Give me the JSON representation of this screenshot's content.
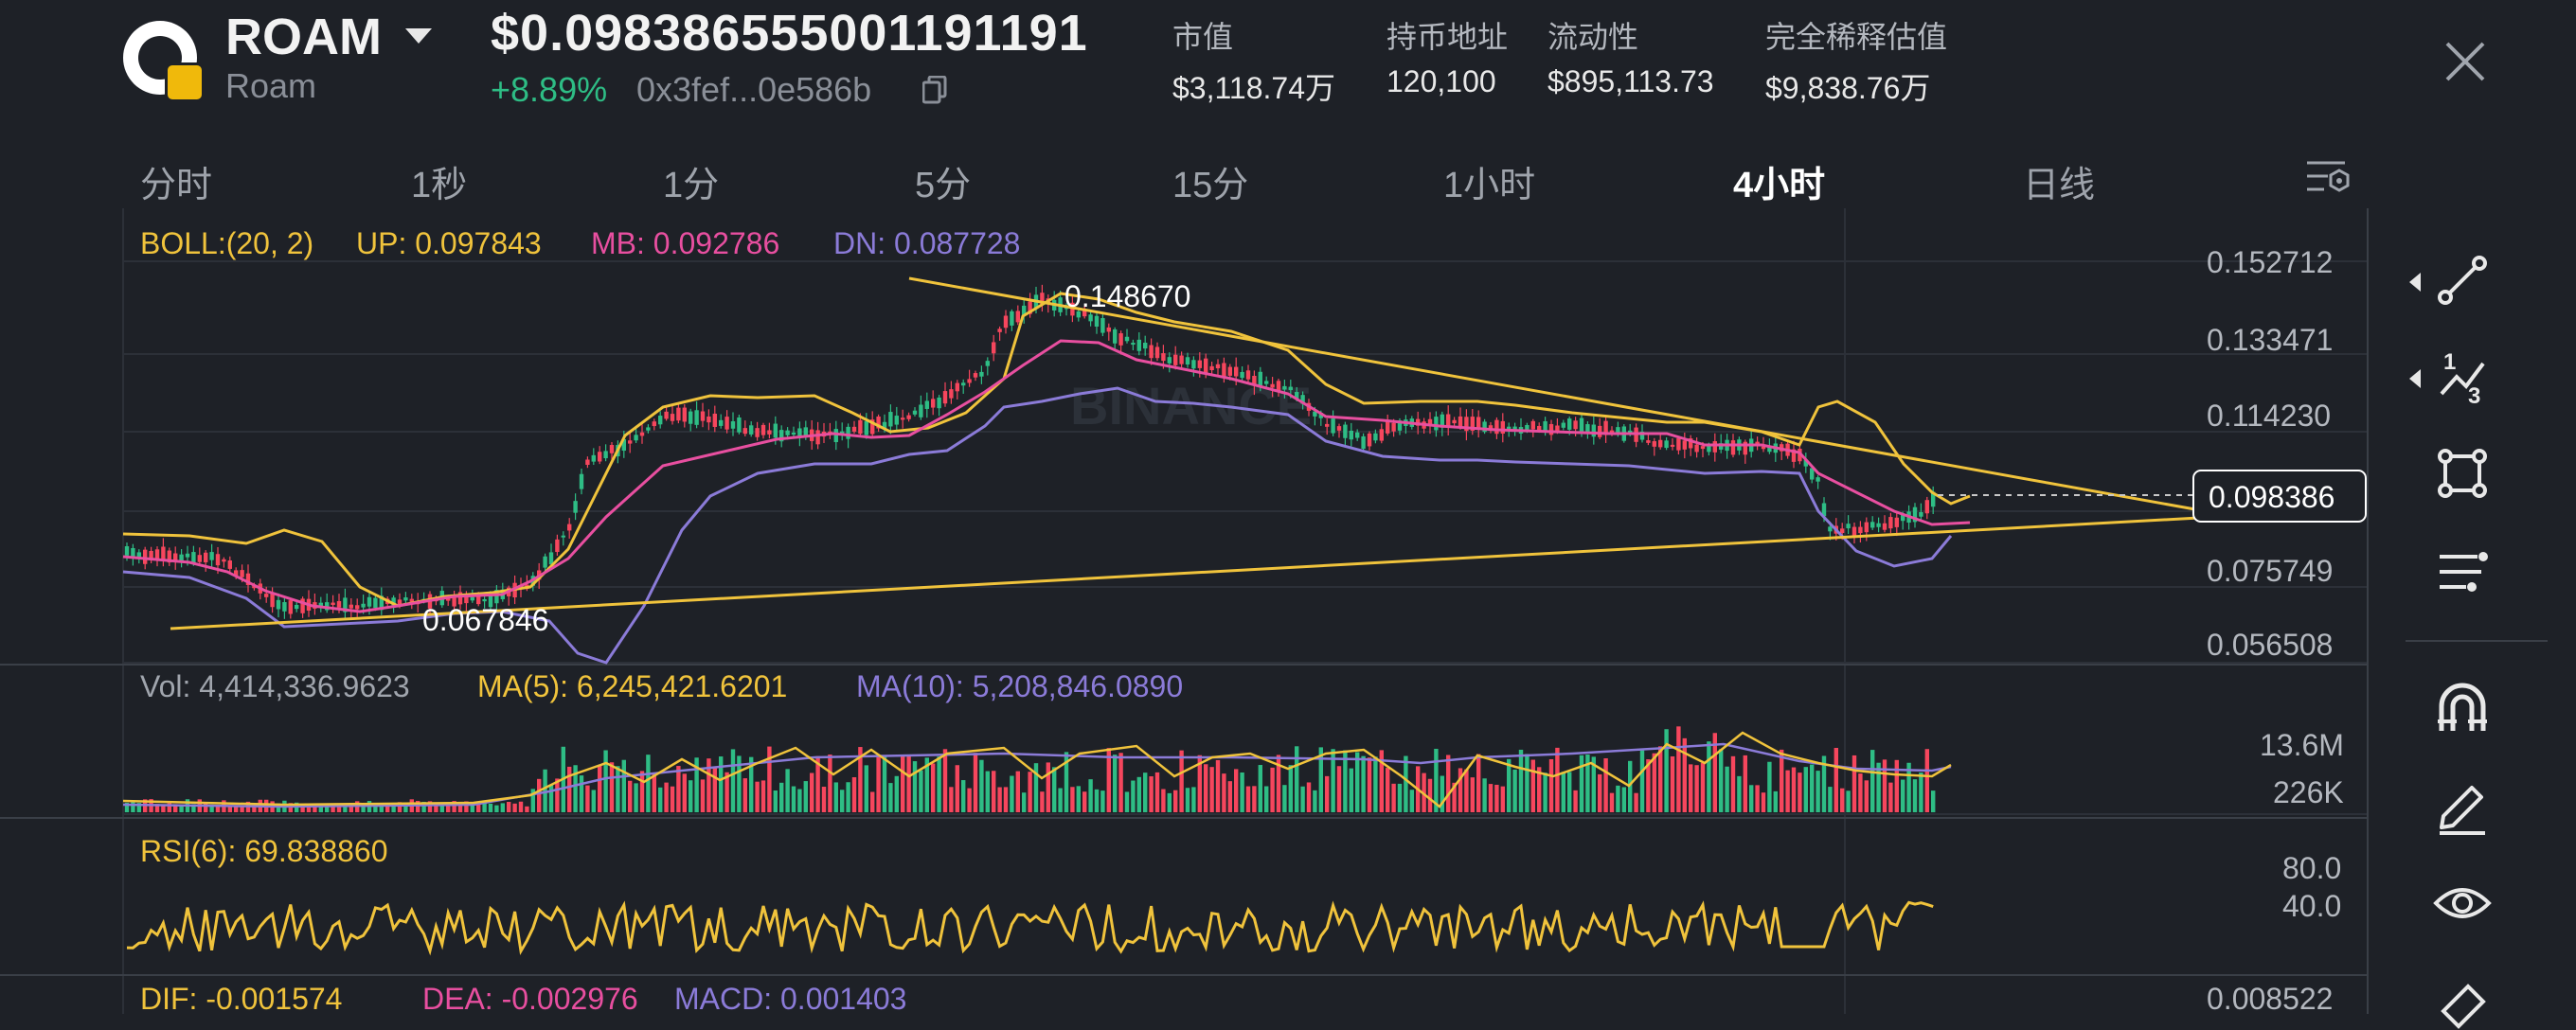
{
  "header": {
    "ticker": "ROAM",
    "name": "Roam",
    "price": "$0.098386555001191191",
    "change": "+8.89%",
    "address": "0x3fef...0e586b",
    "stats": [
      {
        "label": "市值",
        "value": "$3,118.74万"
      },
      {
        "label": "持币地址",
        "value": "120,100"
      },
      {
        "label": "流动性",
        "value": "$895,113.73"
      },
      {
        "label": "完全稀释估值",
        "value": "$9,838.76万"
      }
    ]
  },
  "tabs": [
    "分时",
    "1秒",
    "1分",
    "5分",
    "15分",
    "1小时",
    "4小时",
    "日线"
  ],
  "active_tab": "4小时",
  "indicators": {
    "boll": {
      "name": "BOLL:(20, 2)",
      "up": "UP: 0.097843",
      "mb": "MB: 0.092786",
      "dn": "DN: 0.087728"
    },
    "vol": {
      "vol": "Vol: 4,414,336.9623",
      "ma5": "MA(5): 6,245,421.6201",
      "ma10": "MA(10): 5,208,846.0890"
    },
    "rsi": {
      "rsi6": "RSI(6): 69.838860"
    },
    "macd": {
      "dif": "DIF: -0.001574",
      "dea": "DEA: -0.002976",
      "macd": "MACD: 0.001403"
    }
  },
  "price_axis": [
    "0.152712",
    "0.133471",
    "0.114230",
    "0.075749",
    "0.056508"
  ],
  "current_price_label": "0.098386",
  "annotations": {
    "high": "0.148670",
    "low": "0.067846"
  },
  "watermark": "BINANCE",
  "volume_axis": [
    "13.6M",
    "226K"
  ],
  "rsi_axis": [
    "80.0",
    "40.0"
  ],
  "macd_axis": [
    "0.008522"
  ],
  "toolbar": [
    "trendline-icon",
    "fibonacci-icon",
    "rectangle-icon",
    "parallel-lines-icon",
    "magnet-icon",
    "pencil-icon",
    "eye-icon",
    "eraser-icon"
  ],
  "colors": {
    "background": "#1e2127",
    "up": "#2ebd85",
    "down": "#f6465d",
    "boll_up": "#f0c33c",
    "boll_mb": "#e84fa0",
    "boll_dn": "#8b7bd8",
    "trendline": "#f0c33c"
  }
}
